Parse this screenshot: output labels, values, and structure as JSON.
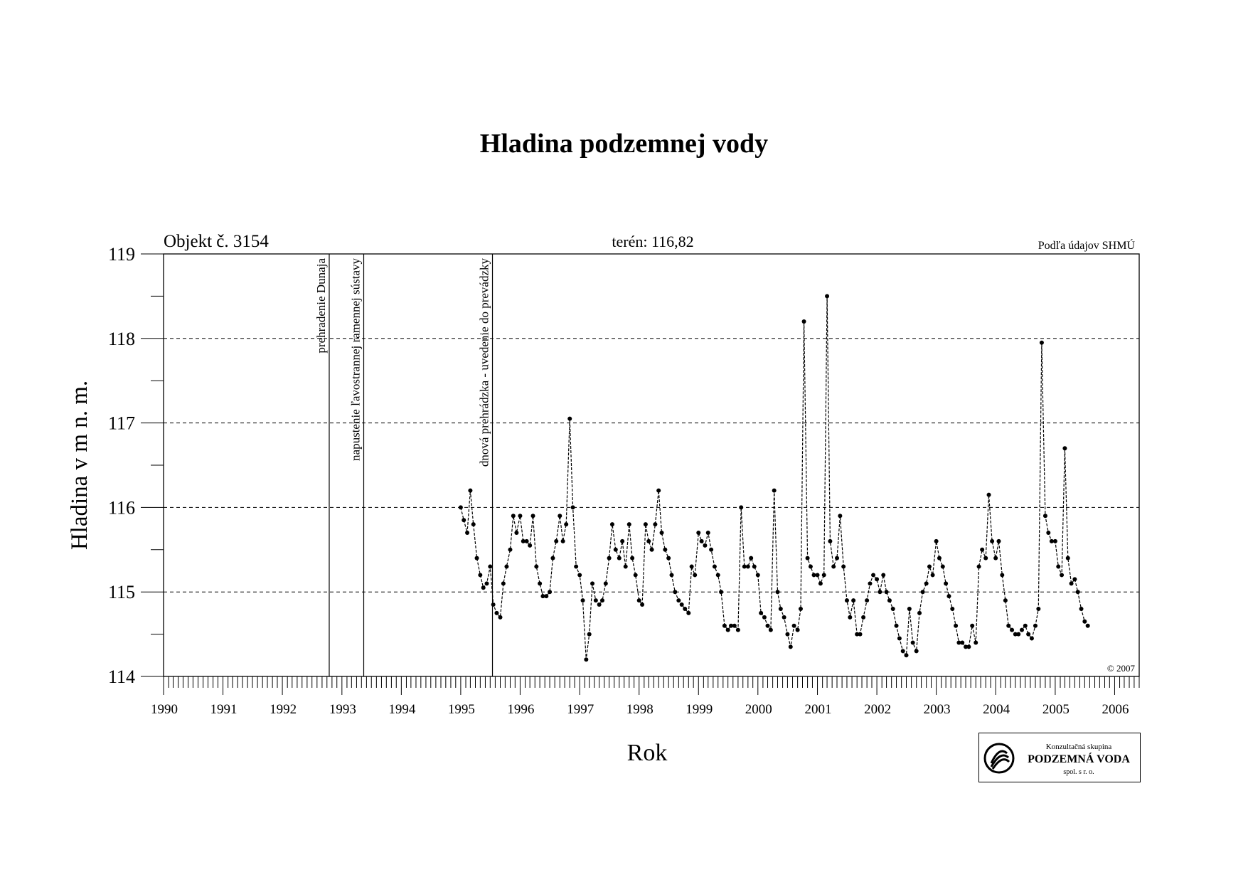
{
  "title": "Hladina podzemnej vody",
  "object_label": "Objekt č. 3154",
  "terrain_label": "terén: 116,82",
  "source_label": "Podľa údajov SHMÚ",
  "copyright": "© 2007",
  "logo": {
    "line1": "Konzultačná skupina",
    "line2": "PODZEMNÁ VODA",
    "line3": "spol. s r. o."
  },
  "chart_data": {
    "type": "line",
    "title": "Hladina podzemnej vody",
    "xlabel": "Rok",
    "ylabel": "Hladina v m n. m.",
    "xlim": [
      "1990-01-01",
      "2006-06-01"
    ],
    "ylim": [
      114,
      119
    ],
    "yticks": [
      114,
      115,
      116,
      117,
      118,
      119
    ],
    "xticks": [
      "1990",
      "1991",
      "1992",
      "1993",
      "1994",
      "1995",
      "1996",
      "1997",
      "1998",
      "1999",
      "2000",
      "2001",
      "2002",
      "2003",
      "2004",
      "2005",
      "2006"
    ],
    "grid": "horizontal dashed",
    "events": [
      {
        "date": "1992-10-15",
        "label": "prehradenie Dunaja"
      },
      {
        "date": "1993-05-15",
        "label": "napustenie ľavostrannej ramennej sústavy"
      },
      {
        "date": "1995-07-15",
        "label": "dnová prehrádzka - uvedenie do prevádzky"
      }
    ],
    "series": [
      {
        "name": "",
        "points": [
          [
            "1995-01-01",
            116.0
          ],
          [
            "1995-01-20",
            115.85
          ],
          [
            "1995-02-10",
            115.7
          ],
          [
            "1995-03-01",
            116.2
          ],
          [
            "1995-03-20",
            115.8
          ],
          [
            "1995-04-10",
            115.4
          ],
          [
            "1995-05-01",
            115.2
          ],
          [
            "1995-05-20",
            115.05
          ],
          [
            "1995-06-10",
            115.1
          ],
          [
            "1995-07-01",
            115.3
          ],
          [
            "1995-07-20",
            114.85
          ],
          [
            "1995-08-10",
            114.75
          ],
          [
            "1995-09-01",
            114.7
          ],
          [
            "1995-09-20",
            115.1
          ],
          [
            "1995-10-10",
            115.3
          ],
          [
            "1995-11-01",
            115.5
          ],
          [
            "1995-11-20",
            115.9
          ],
          [
            "1995-12-10",
            115.7
          ],
          [
            "1996-01-01",
            115.9
          ],
          [
            "1996-01-20",
            115.6
          ],
          [
            "1996-02-10",
            115.6
          ],
          [
            "1996-03-01",
            115.55
          ],
          [
            "1996-03-20",
            115.9
          ],
          [
            "1996-04-10",
            115.3
          ],
          [
            "1996-05-01",
            115.1
          ],
          [
            "1996-05-20",
            114.95
          ],
          [
            "1996-06-10",
            114.95
          ],
          [
            "1996-07-01",
            115.0
          ],
          [
            "1996-07-20",
            115.4
          ],
          [
            "1996-08-10",
            115.6
          ],
          [
            "1996-09-01",
            115.9
          ],
          [
            "1996-09-20",
            115.6
          ],
          [
            "1996-10-10",
            115.8
          ],
          [
            "1996-11-01",
            117.05
          ],
          [
            "1996-11-20",
            116.0
          ],
          [
            "1996-12-10",
            115.3
          ],
          [
            "1997-01-01",
            115.2
          ],
          [
            "1997-01-20",
            114.9
          ],
          [
            "1997-02-10",
            114.2
          ],
          [
            "1997-03-01",
            114.5
          ],
          [
            "1997-03-20",
            115.1
          ],
          [
            "1997-04-10",
            114.9
          ],
          [
            "1997-05-01",
            114.85
          ],
          [
            "1997-05-20",
            114.9
          ],
          [
            "1997-06-10",
            115.1
          ],
          [
            "1997-07-01",
            115.4
          ],
          [
            "1997-07-20",
            115.8
          ],
          [
            "1997-08-10",
            115.5
          ],
          [
            "1997-09-01",
            115.4
          ],
          [
            "1997-09-20",
            115.6
          ],
          [
            "1997-10-10",
            115.3
          ],
          [
            "1997-11-01",
            115.8
          ],
          [
            "1997-11-20",
            115.4
          ],
          [
            "1997-12-10",
            115.2
          ],
          [
            "1998-01-01",
            114.9
          ],
          [
            "1998-01-20",
            114.85
          ],
          [
            "1998-02-10",
            115.8
          ],
          [
            "1998-03-01",
            115.6
          ],
          [
            "1998-03-20",
            115.5
          ],
          [
            "1998-04-10",
            115.8
          ],
          [
            "1998-05-01",
            116.2
          ],
          [
            "1998-05-20",
            115.7
          ],
          [
            "1998-06-10",
            115.5
          ],
          [
            "1998-07-01",
            115.4
          ],
          [
            "1998-07-20",
            115.2
          ],
          [
            "1998-08-10",
            115.0
          ],
          [
            "1998-09-01",
            114.9
          ],
          [
            "1998-09-20",
            114.85
          ],
          [
            "1998-10-10",
            114.8
          ],
          [
            "1998-11-01",
            114.75
          ],
          [
            "1998-11-20",
            115.3
          ],
          [
            "1998-12-10",
            115.2
          ],
          [
            "1999-01-01",
            115.7
          ],
          [
            "1999-01-20",
            115.6
          ],
          [
            "1999-02-10",
            115.55
          ],
          [
            "1999-03-01",
            115.7
          ],
          [
            "1999-03-20",
            115.5
          ],
          [
            "1999-04-10",
            115.3
          ],
          [
            "1999-05-01",
            115.2
          ],
          [
            "1999-05-20",
            115.0
          ],
          [
            "1999-06-10",
            114.6
          ],
          [
            "1999-07-01",
            114.55
          ],
          [
            "1999-07-20",
            114.6
          ],
          [
            "1999-08-10",
            114.6
          ],
          [
            "1999-09-01",
            114.55
          ],
          [
            "1999-09-20",
            116.0
          ],
          [
            "1999-10-10",
            115.3
          ],
          [
            "1999-11-01",
            115.3
          ],
          [
            "1999-11-20",
            115.4
          ],
          [
            "1999-12-10",
            115.3
          ],
          [
            "2000-01-01",
            115.2
          ],
          [
            "2000-01-20",
            114.75
          ],
          [
            "2000-02-10",
            114.7
          ],
          [
            "2000-03-01",
            114.6
          ],
          [
            "2000-03-20",
            114.55
          ],
          [
            "2000-04-10",
            116.2
          ],
          [
            "2000-05-01",
            115.0
          ],
          [
            "2000-05-20",
            114.8
          ],
          [
            "2000-06-10",
            114.7
          ],
          [
            "2000-07-01",
            114.5
          ],
          [
            "2000-07-20",
            114.35
          ],
          [
            "2000-08-10",
            114.6
          ],
          [
            "2000-09-01",
            114.55
          ],
          [
            "2000-09-20",
            114.8
          ],
          [
            "2000-10-10",
            118.2
          ],
          [
            "2000-11-01",
            115.4
          ],
          [
            "2000-11-20",
            115.3
          ],
          [
            "2000-12-10",
            115.2
          ],
          [
            "2001-01-01",
            115.2
          ],
          [
            "2001-01-20",
            115.1
          ],
          [
            "2001-02-10",
            115.2
          ],
          [
            "2001-03-01",
            118.5
          ],
          [
            "2001-03-20",
            115.6
          ],
          [
            "2001-04-10",
            115.3
          ],
          [
            "2001-05-01",
            115.4
          ],
          [
            "2001-05-20",
            115.9
          ],
          [
            "2001-06-10",
            115.3
          ],
          [
            "2001-07-01",
            114.9
          ],
          [
            "2001-07-20",
            114.7
          ],
          [
            "2001-08-10",
            114.9
          ],
          [
            "2001-09-01",
            114.5
          ],
          [
            "2001-09-20",
            114.5
          ],
          [
            "2001-10-10",
            114.7
          ],
          [
            "2001-11-01",
            114.9
          ],
          [
            "2001-11-20",
            115.1
          ],
          [
            "2001-12-10",
            115.2
          ],
          [
            "2002-01-01",
            115.15
          ],
          [
            "2002-01-20",
            115.0
          ],
          [
            "2002-02-10",
            115.2
          ],
          [
            "2002-03-01",
            115.0
          ],
          [
            "2002-03-20",
            114.9
          ],
          [
            "2002-04-10",
            114.8
          ],
          [
            "2002-05-01",
            114.6
          ],
          [
            "2002-05-20",
            114.45
          ],
          [
            "2002-06-10",
            114.3
          ],
          [
            "2002-07-01",
            114.25
          ],
          [
            "2002-07-20",
            114.8
          ],
          [
            "2002-08-10",
            114.4
          ],
          [
            "2002-09-01",
            114.3
          ],
          [
            "2002-09-20",
            114.75
          ],
          [
            "2002-10-10",
            115.0
          ],
          [
            "2002-11-01",
            115.1
          ],
          [
            "2002-11-20",
            115.3
          ],
          [
            "2002-12-10",
            115.2
          ],
          [
            "2003-01-01",
            115.6
          ],
          [
            "2003-01-20",
            115.4
          ],
          [
            "2003-02-10",
            115.3
          ],
          [
            "2003-03-01",
            115.1
          ],
          [
            "2003-03-20",
            114.95
          ],
          [
            "2003-04-10",
            114.8
          ],
          [
            "2003-05-01",
            114.6
          ],
          [
            "2003-05-20",
            114.4
          ],
          [
            "2003-06-10",
            114.4
          ],
          [
            "2003-07-01",
            114.35
          ],
          [
            "2003-07-20",
            114.35
          ],
          [
            "2003-08-10",
            114.6
          ],
          [
            "2003-09-01",
            114.4
          ],
          [
            "2003-09-20",
            115.3
          ],
          [
            "2003-10-10",
            115.5
          ],
          [
            "2003-11-01",
            115.4
          ],
          [
            "2003-11-20",
            116.15
          ],
          [
            "2003-12-10",
            115.6
          ],
          [
            "2004-01-01",
            115.4
          ],
          [
            "2004-01-20",
            115.6
          ],
          [
            "2004-02-10",
            115.2
          ],
          [
            "2004-03-01",
            114.9
          ],
          [
            "2004-03-20",
            114.6
          ],
          [
            "2004-04-10",
            114.55
          ],
          [
            "2004-05-01",
            114.5
          ],
          [
            "2004-05-20",
            114.5
          ],
          [
            "2004-06-10",
            114.55
          ],
          [
            "2004-07-01",
            114.6
          ],
          [
            "2004-07-20",
            114.5
          ],
          [
            "2004-08-10",
            114.45
          ],
          [
            "2004-09-01",
            114.6
          ],
          [
            "2004-09-20",
            114.8
          ],
          [
            "2004-10-10",
            117.95
          ],
          [
            "2004-11-01",
            115.9
          ],
          [
            "2004-11-20",
            115.7
          ],
          [
            "2004-12-10",
            115.6
          ],
          [
            "2005-01-01",
            115.6
          ],
          [
            "2005-01-20",
            115.3
          ],
          [
            "2005-02-10",
            115.2
          ],
          [
            "2005-03-01",
            116.7
          ],
          [
            "2005-03-20",
            115.4
          ],
          [
            "2005-04-10",
            115.1
          ],
          [
            "2005-05-01",
            115.15
          ],
          [
            "2005-05-20",
            115.0
          ],
          [
            "2005-06-10",
            114.8
          ],
          [
            "2005-07-01",
            114.65
          ],
          [
            "2005-07-20",
            114.6
          ]
        ]
      }
    ]
  }
}
